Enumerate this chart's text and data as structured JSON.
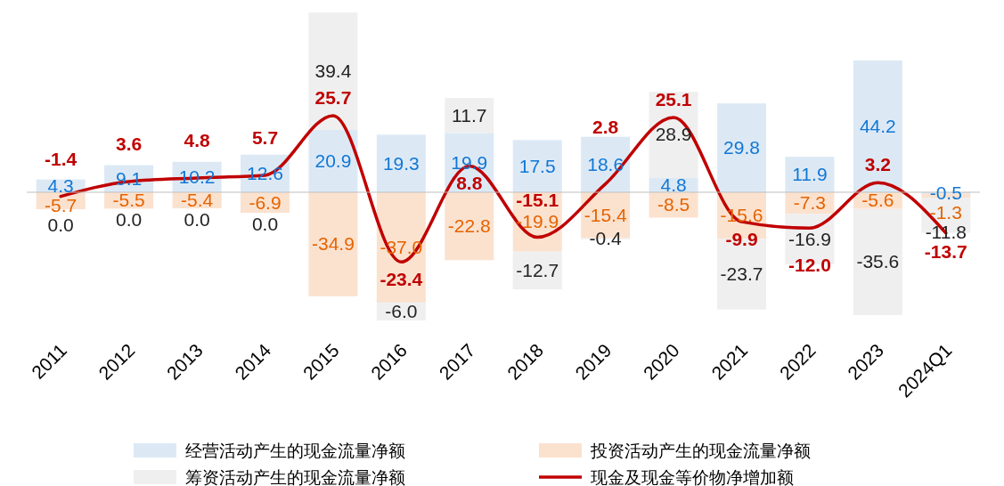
{
  "chart_data": {
    "type": "bar",
    "stacked": true,
    "legend": "bottom",
    "categories": [
      "2011",
      "2012",
      "2013",
      "2014",
      "2015",
      "2016",
      "2017",
      "2018",
      "2019",
      "2020",
      "2021",
      "2022",
      "2023",
      "2024Q1"
    ],
    "series": [
      {
        "name": "经营活动产生的现金流量净额",
        "color": "#dce9f5",
        "values": [
          4.3,
          9.1,
          10.2,
          12.6,
          20.9,
          19.3,
          19.9,
          17.5,
          18.6,
          4.8,
          29.8,
          11.9,
          44.2,
          -0.5
        ],
        "value_labels": [
          "4.3",
          "9.1",
          "10.2",
          "12.6",
          "20.9",
          "19.3",
          "19.9",
          "17.5",
          "18.6",
          "4.8",
          "29.8",
          "11.9",
          "44.2",
          "-0.5"
        ]
      },
      {
        "name": "投资活动产生的现金流量净额",
        "color": "#fbe2cf",
        "values": [
          -5.7,
          -5.5,
          -5.4,
          -6.9,
          -34.9,
          -37.0,
          -22.8,
          -19.9,
          -15.4,
          -8.5,
          -15.6,
          -7.3,
          -5.6,
          -1.3
        ],
        "value_labels": [
          "-5.7",
          "-5.5",
          "-5.4",
          "-6.9",
          "-34.9",
          "-37.0",
          "-22.8",
          "-19.9",
          "-15.4",
          "-8.5",
          "-15.6",
          "-7.3",
          "-5.6",
          "-1.3"
        ]
      },
      {
        "name": "筹资活动产生的现金流量净额",
        "color": "#efefef",
        "values": [
          0.0,
          0.0,
          0.0,
          0.0,
          39.4,
          -6.0,
          11.7,
          -12.7,
          -0.4,
          28.9,
          -23.7,
          -16.9,
          -35.6,
          -11.8
        ],
        "value_labels": [
          "0.0",
          "0.0",
          "0.0",
          "0.0",
          "39.4",
          "-6.0",
          "11.7",
          "-12.7",
          "-0.4",
          "28.9",
          "-23.7",
          "-16.9",
          "-35.6",
          "-11.8"
        ]
      },
      {
        "name": "现金及现金等价物净增加额",
        "type": "line",
        "color": "#c00000",
        "values": [
          -1.4,
          3.6,
          4.8,
          5.7,
          25.7,
          -23.4,
          8.8,
          -15.1,
          2.8,
          25.1,
          -9.9,
          -12.0,
          3.2,
          -13.7
        ],
        "value_labels": [
          "-1.4",
          "3.6",
          "4.8",
          "5.7",
          "25.7",
          "-23.4",
          "8.8",
          "-15.1",
          "2.8",
          "25.1",
          "-9.9",
          "-12.0",
          "3.2",
          "-13.7"
        ]
      }
    ]
  }
}
